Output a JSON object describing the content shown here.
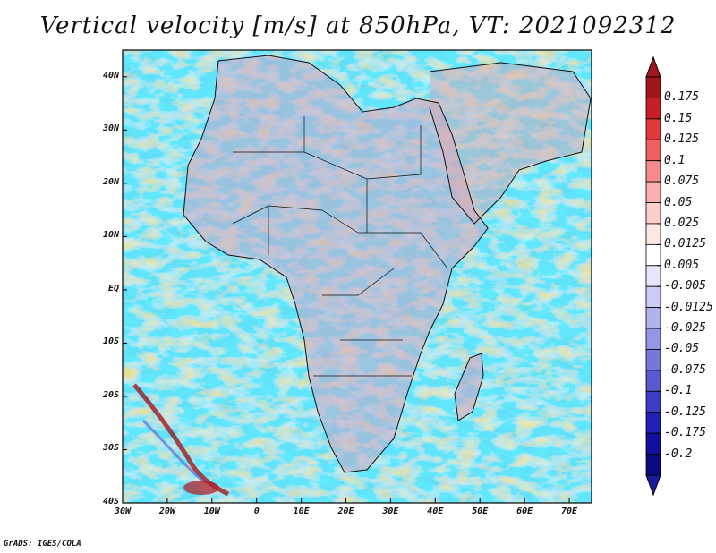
{
  "title": "Vertical velocity [m/s] at 850hPa, VT: 2021092312",
  "credit": "GrADS: IGES/COLA",
  "map": {
    "region": "Africa and surrounding oceans",
    "projection": "lat-lon",
    "lon_range": [
      -30,
      75
    ],
    "lat_range": [
      -40,
      45
    ],
    "lat_ticks": [
      {
        "value": 40,
        "label": "40N"
      },
      {
        "value": 30,
        "label": "30N"
      },
      {
        "value": 20,
        "label": "20N"
      },
      {
        "value": 10,
        "label": "10N"
      },
      {
        "value": 0,
        "label": "EQ"
      },
      {
        "value": -10,
        "label": "10S"
      },
      {
        "value": -20,
        "label": "20S"
      },
      {
        "value": -30,
        "label": "30S"
      },
      {
        "value": -40,
        "label": "40S"
      }
    ],
    "lon_ticks": [
      {
        "value": -30,
        "label": "30W"
      },
      {
        "value": -20,
        "label": "20W"
      },
      {
        "value": -10,
        "label": "10W"
      },
      {
        "value": 0,
        "label": "0"
      },
      {
        "value": 10,
        "label": "10E"
      },
      {
        "value": 20,
        "label": "20E"
      },
      {
        "value": 30,
        "label": "30E"
      },
      {
        "value": 40,
        "label": "40E"
      },
      {
        "value": 50,
        "label": "50E"
      },
      {
        "value": 60,
        "label": "60E"
      },
      {
        "value": 70,
        "label": "70E"
      }
    ]
  },
  "colorbar": {
    "labels": [
      "0.175",
      "0.15",
      "0.125",
      "0.1",
      "0.075",
      "0.05",
      "0.025",
      "0.0125",
      "0.005",
      "-0.005",
      "-0.0125",
      "-0.025",
      "-0.05",
      "-0.075",
      "-0.1",
      "-0.125",
      "-0.175",
      "-0.2"
    ],
    "colors": [
      "#a0161c",
      "#c81f26",
      "#e0393b",
      "#ee6060",
      "#f58a8a",
      "#f9b0ae",
      "#fbd0cc",
      "#fde8e5",
      "#ffffff",
      "#e6e6fb",
      "#ccccf6",
      "#b3b3f0",
      "#9696e6",
      "#7878dc",
      "#5a5ad0",
      "#3c3cc4",
      "#2020b4",
      "#10109c",
      "#0a0a80"
    ],
    "extend_top_color": "#a0161c",
    "extend_bottom_color": "#1a1aa0"
  }
}
